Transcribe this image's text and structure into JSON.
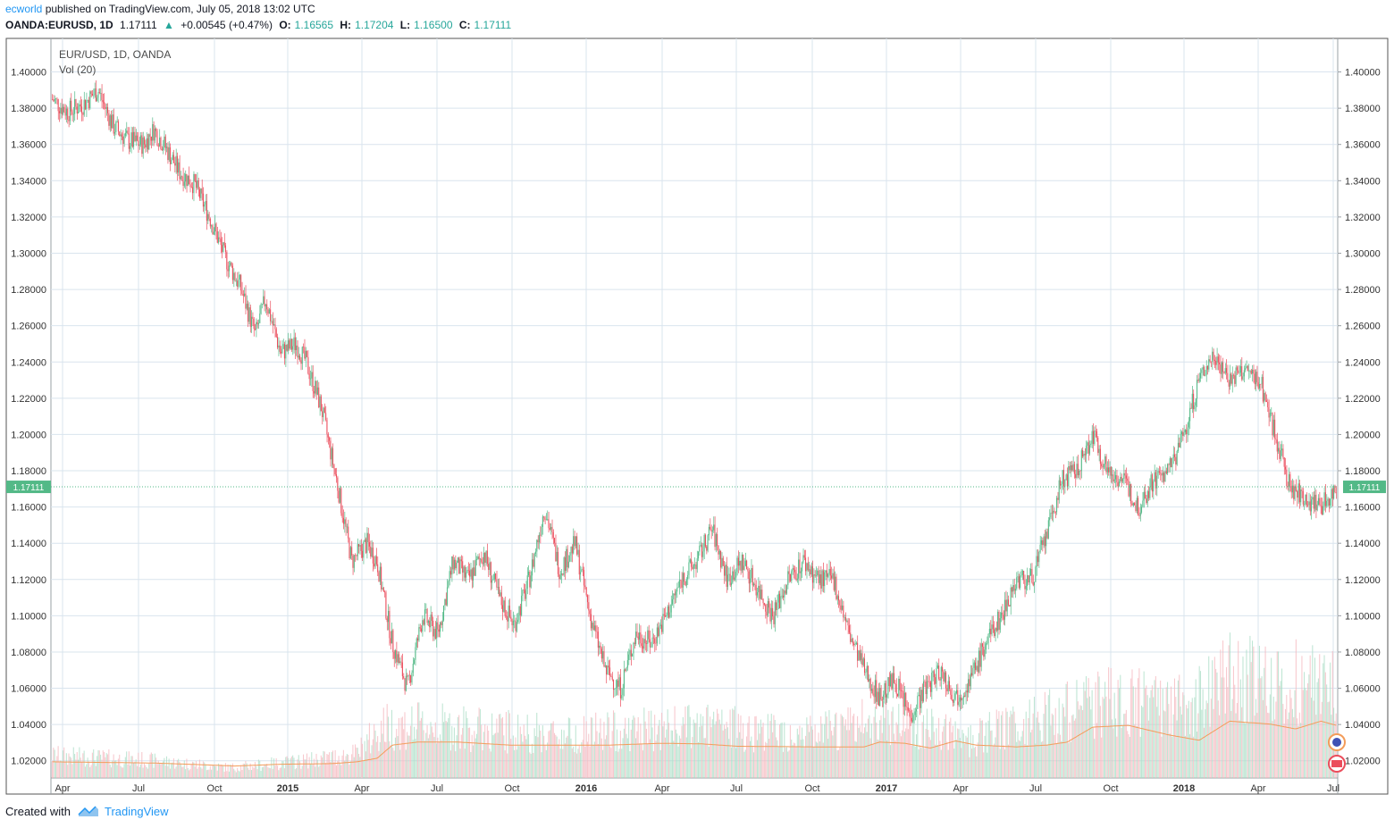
{
  "header": {
    "author": "ecworld",
    "published_text": "published on TradingView.com, July 05, 2018 13:02 UTC"
  },
  "quote": {
    "symbol": "OANDA:EURUSD, 1D",
    "last": "1.17111",
    "change": "+0.00545 (+0.47%)",
    "o_label": "O:",
    "o": "1.16565",
    "h_label": "H:",
    "h": "1.17204",
    "l_label": "L:",
    "l": "1.16500",
    "c_label": "C:",
    "c": "1.17111",
    "arrow": "▲"
  },
  "legend": {
    "series": "EUR/USD, 1D, OANDA",
    "volume": "Vol (20)"
  },
  "footer": {
    "created_with": "Created with",
    "brand": "TradingView"
  },
  "chart_data": {
    "type": "candlestick",
    "y_ticks": [
      "1.02000",
      "1.04000",
      "1.06000",
      "1.08000",
      "1.10000",
      "1.12000",
      "1.14000",
      "1.16000",
      "1.18000",
      "1.20000",
      "1.22000",
      "1.24000",
      "1.26000",
      "1.28000",
      "1.30000",
      "1.32000",
      "1.34000",
      "1.36000",
      "1.38000",
      "1.40000"
    ],
    "x_ticks": [
      {
        "label": "Apr",
        "bold": false
      },
      {
        "label": "Jul",
        "bold": false
      },
      {
        "label": "Oct",
        "bold": false
      },
      {
        "label": "2015",
        "bold": true
      },
      {
        "label": "Apr",
        "bold": false
      },
      {
        "label": "Jul",
        "bold": false
      },
      {
        "label": "Oct",
        "bold": false
      },
      {
        "label": "2016",
        "bold": true
      },
      {
        "label": "Apr",
        "bold": false
      },
      {
        "label": "Jul",
        "bold": false
      },
      {
        "label": "Oct",
        "bold": false
      },
      {
        "label": "2017",
        "bold": true
      },
      {
        "label": "Apr",
        "bold": false
      },
      {
        "label": "Jul",
        "bold": false
      },
      {
        "label": "Oct",
        "bold": false
      },
      {
        "label": "2018",
        "bold": true
      },
      {
        "label": "Apr",
        "bold": false
      },
      {
        "label": "Jul",
        "bold": false
      }
    ],
    "ylim": [
      1.0105,
      1.4185
    ],
    "last_price": "1.17111",
    "price_anchors": [
      [
        0,
        1.385
      ],
      [
        3,
        1.378
      ],
      [
        6,
        1.382
      ],
      [
        9,
        1.39
      ],
      [
        12,
        1.37
      ],
      [
        15,
        1.362
      ],
      [
        18,
        1.36
      ],
      [
        20,
        1.368
      ],
      [
        22,
        1.36
      ],
      [
        25,
        1.345
      ],
      [
        28,
        1.338
      ],
      [
        31,
        1.32
      ],
      [
        34,
        1.298
      ],
      [
        37,
        1.282
      ],
      [
        40,
        1.255
      ],
      [
        42,
        1.275
      ],
      [
        45,
        1.245
      ],
      [
        48,
        1.25
      ],
      [
        50,
        1.24
      ],
      [
        53,
        1.215
      ],
      [
        56,
        1.175
      ],
      [
        59,
        1.13
      ],
      [
        62,
        1.14
      ],
      [
        64,
        1.13
      ],
      [
        67,
        1.085
      ],
      [
        70,
        1.06
      ],
      [
        73,
        1.1
      ],
      [
        76,
        1.09
      ],
      [
        79,
        1.13
      ],
      [
        82,
        1.12
      ],
      [
        85,
        1.135
      ],
      [
        88,
        1.11
      ],
      [
        91,
        1.095
      ],
      [
        94,
        1.12
      ],
      [
        97,
        1.16
      ],
      [
        100,
        1.125
      ],
      [
        103,
        1.14
      ],
      [
        106,
        1.1
      ],
      [
        109,
        1.07
      ],
      [
        112,
        1.06
      ],
      [
        115,
        1.09
      ],
      [
        118,
        1.085
      ],
      [
        121,
        1.1
      ],
      [
        124,
        1.12
      ],
      [
        127,
        1.13
      ],
      [
        130,
        1.148
      ],
      [
        133,
        1.12
      ],
      [
        136,
        1.13
      ],
      [
        139,
        1.115
      ],
      [
        142,
        1.1
      ],
      [
        145,
        1.12
      ],
      [
        148,
        1.13
      ],
      [
        151,
        1.12
      ],
      [
        154,
        1.12
      ],
      [
        157,
        1.09
      ],
      [
        160,
        1.07
      ],
      [
        163,
        1.055
      ],
      [
        166,
        1.065
      ],
      [
        169,
        1.045
      ],
      [
        172,
        1.06
      ],
      [
        175,
        1.07
      ],
      [
        178,
        1.055
      ],
      [
        181,
        1.065
      ],
      [
        184,
        1.085
      ],
      [
        187,
        1.1
      ],
      [
        190,
        1.12
      ],
      [
        193,
        1.12
      ],
      [
        196,
        1.145
      ],
      [
        199,
        1.175
      ],
      [
        202,
        1.18
      ],
      [
        205,
        1.2
      ],
      [
        208,
        1.18
      ],
      [
        211,
        1.175
      ],
      [
        214,
        1.16
      ],
      [
        217,
        1.175
      ],
      [
        220,
        1.18
      ],
      [
        223,
        1.2
      ],
      [
        226,
        1.23
      ],
      [
        229,
        1.245
      ],
      [
        232,
        1.23
      ],
      [
        235,
        1.235
      ],
      [
        238,
        1.23
      ],
      [
        241,
        1.2
      ],
      [
        244,
        1.17
      ],
      [
        247,
        1.165
      ],
      [
        250,
        1.16
      ],
      [
        253,
        1.17
      ]
    ],
    "volume_anchors": [
      [
        0,
        0.13
      ],
      [
        20,
        0.1
      ],
      [
        35,
        0.06
      ],
      [
        50,
        0.1
      ],
      [
        60,
        0.14
      ],
      [
        65,
        0.3
      ],
      [
        75,
        0.3
      ],
      [
        100,
        0.25
      ],
      [
        130,
        0.3
      ],
      [
        150,
        0.25
      ],
      [
        165,
        0.35
      ],
      [
        180,
        0.22
      ],
      [
        195,
        0.35
      ],
      [
        210,
        0.45
      ],
      [
        225,
        0.4
      ],
      [
        230,
        0.6
      ],
      [
        245,
        0.55
      ],
      [
        253,
        0.5
      ]
    ],
    "volume_ma_anchors": [
      [
        0,
        0.27
      ],
      [
        10,
        0.26
      ],
      [
        20,
        0.25
      ],
      [
        30,
        0.22
      ],
      [
        36,
        0.2
      ],
      [
        45,
        0.23
      ],
      [
        55,
        0.24
      ],
      [
        60,
        0.27
      ],
      [
        64,
        0.33
      ],
      [
        67,
        0.55
      ],
      [
        72,
        0.6
      ],
      [
        80,
        0.6
      ],
      [
        90,
        0.55
      ],
      [
        100,
        0.55
      ],
      [
        110,
        0.55
      ],
      [
        120,
        0.58
      ],
      [
        128,
        0.57
      ],
      [
        135,
        0.53
      ],
      [
        150,
        0.52
      ],
      [
        160,
        0.52
      ],
      [
        163,
        0.6
      ],
      [
        168,
        0.58
      ],
      [
        173,
        0.5
      ],
      [
        178,
        0.62
      ],
      [
        182,
        0.55
      ],
      [
        190,
        0.52
      ],
      [
        196,
        0.55
      ],
      [
        200,
        0.6
      ],
      [
        205,
        0.85
      ],
      [
        212,
        0.88
      ],
      [
        220,
        0.72
      ],
      [
        226,
        0.63
      ],
      [
        232,
        0.95
      ],
      [
        240,
        0.9
      ],
      [
        245,
        0.82
      ],
      [
        250,
        0.95
      ],
      [
        253,
        0.88
      ]
    ]
  }
}
